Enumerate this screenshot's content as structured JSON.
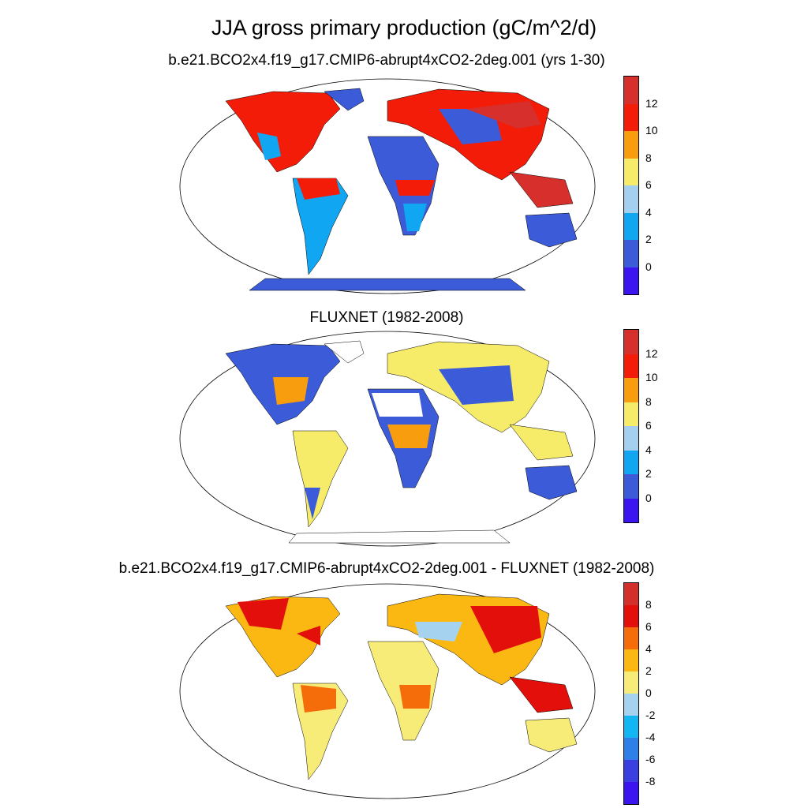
{
  "figure": {
    "title": "JJA gross primary production (gC/m^2/d)"
  },
  "panels": [
    {
      "title": "b.e21.BCO2x4.f19_g17.CMIP6-abrupt4xCO2-2deg.001 (yrs 1-30)",
      "colorbar": {
        "colors": [
          "#3b14f0",
          "#3b5bd9",
          "#11a6f2",
          "#a5cfee",
          "#f7eb6a",
          "#f89d0e",
          "#f21c08",
          "#d72f2b"
        ],
        "tick_labels": [
          "0",
          "2",
          "4",
          "6",
          "8",
          "10",
          "12"
        ]
      }
    },
    {
      "title": "FLUXNET (1982-2008)",
      "colorbar": {
        "colors": [
          "#3b14f0",
          "#3b5bd9",
          "#11a6f2",
          "#a5cfee",
          "#f7eb6a",
          "#f89d0e",
          "#f21c08",
          "#d72f2b"
        ],
        "tick_labels": [
          "0",
          "2",
          "4",
          "6",
          "8",
          "10",
          "12"
        ]
      }
    },
    {
      "title": "b.e21.BCO2x4.f19_g17.CMIP6-abrupt4xCO2-2deg.001 - FLUXNET (1982-2008)",
      "colorbar": {
        "colors": [
          "#3b14f0",
          "#3b3fe0",
          "#2f7fe8",
          "#12b6f2",
          "#a5d3ef",
          "#f8ec78",
          "#fbb812",
          "#f56d0a",
          "#e30f0a",
          "#d3302c"
        ],
        "tick_labels": [
          "8",
          "6",
          "4",
          "2",
          "0",
          "-2",
          "-4",
          "-6",
          "-8"
        ]
      }
    }
  ],
  "map_colors": {
    "land_outline": "#000000",
    "panel1": {
      "ocean": "#ffffff",
      "desert": "#3b5bd9",
      "forest": "#f21c08",
      "high": "#d72f2b",
      "mid": "#11a6f2",
      "midhigh": "#f89d0e"
    },
    "panel2": {
      "desert": "#3b5bd9",
      "mid": "#f7eb6a",
      "high": "#f89d0e",
      "low": "#11a6f2"
    },
    "panel3": {
      "pos": "#f21c08",
      "mid": "#fbb812",
      "low": "#f8ec78",
      "neg": "#a5d3ef"
    }
  }
}
